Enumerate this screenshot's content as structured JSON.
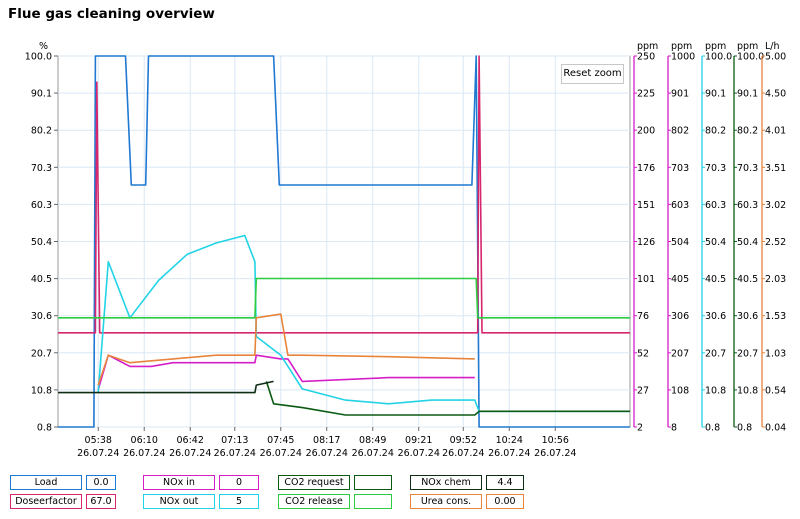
{
  "title": "Flue gas cleaning overview",
  "reset_zoom_label": "Reset zoom",
  "chart_data": {
    "type": "line",
    "title": "Flue gas cleaning overview",
    "x_ticks": [
      "05:38\n26.07.24",
      "06:10\n26.07.24",
      "06:42\n26.07.24",
      "07:13\n26.07.24",
      "07:45\n26.07.24",
      "08:17\n26.07.24",
      "08:49\n26.07.24",
      "09:21\n26.07.24",
      "09:52\n26.07.24",
      "10:24\n26.07.24",
      "10:56\n26.07.24"
    ],
    "xlim": [
      "05:10",
      "11:48"
    ],
    "axes": [
      {
        "id": "pct",
        "unit": "%",
        "side": "left",
        "ylim": [
          0.8,
          100.0
        ],
        "ticks": [
          "0.8",
          "10.8",
          "20.7",
          "30.6",
          "40.5",
          "50.4",
          "60.3",
          "70.3",
          "80.2",
          "90.1",
          "100.0"
        ],
        "color": "#000000"
      },
      {
        "id": "ppm250",
        "unit": "ppm",
        "side": "right",
        "ylim": [
          2,
          250
        ],
        "ticks": [
          "2",
          "27",
          "52",
          "76",
          "101",
          "126",
          "151",
          "176",
          "200",
          "225",
          "250"
        ],
        "color": "#d61ec8"
      },
      {
        "id": "ppm1000",
        "unit": "ppm",
        "side": "right",
        "ylim": [
          8,
          1000
        ],
        "ticks": [
          "8",
          "108",
          "207",
          "306",
          "405",
          "504",
          "603",
          "703",
          "802",
          "901",
          "1000"
        ],
        "color": "#d61ec8"
      },
      {
        "id": "ppm100",
        "unit": "ppm",
        "side": "right",
        "ylim": [
          0.8,
          100.0
        ],
        "ticks": [
          "0.8",
          "10.8",
          "20.7",
          "30.6",
          "40.5",
          "50.4",
          "60.3",
          "70.3",
          "80.2",
          "90.1",
          "100.0"
        ],
        "color": "#22d3e6"
      },
      {
        "id": "pct2",
        "unit": "ppm",
        "side": "right",
        "ylim": [
          0.8,
          100.0
        ],
        "ticks": [
          "0.8",
          "10.8",
          "20.7",
          "30.6",
          "40.5",
          "50.4",
          "60.3",
          "70.3",
          "80.2",
          "90.1",
          "100.0"
        ],
        "color": "#0b5a12"
      },
      {
        "id": "lh",
        "unit": "L/h",
        "side": "right",
        "ylim": [
          0.04,
          5.0
        ],
        "ticks": [
          "0.04",
          "0.54",
          "1.03",
          "1.53",
          "2.03",
          "2.52",
          "3.02",
          "3.51",
          "4.01",
          "4.50",
          "5.00"
        ],
        "color": "#e8843c"
      }
    ],
    "series": [
      {
        "name": "Load",
        "color": "#1f78d1",
        "axis": "pct",
        "points": [
          [
            "05:10",
            0.8
          ],
          [
            "05:35",
            0.8
          ],
          [
            "05:36",
            100
          ],
          [
            "05:57",
            100
          ],
          [
            "06:01",
            65.5
          ],
          [
            "06:11",
            65.5
          ],
          [
            "06:13",
            100
          ],
          [
            "07:40",
            100
          ],
          [
            "07:44",
            65.5
          ],
          [
            "09:58",
            65.5
          ],
          [
            "10:01",
            100
          ],
          [
            "10:03",
            0.8
          ],
          [
            "11:48",
            0.8
          ]
        ]
      },
      {
        "name": "Doseerfactor",
        "color": "#d6266e",
        "axis": "pct",
        "points": [
          [
            "05:10",
            26
          ],
          [
            "05:36",
            26
          ],
          [
            "05:37",
            93
          ],
          [
            "05:39",
            26
          ],
          [
            "10:02",
            26
          ],
          [
            "10:03",
            100
          ],
          [
            "10:05",
            26
          ],
          [
            "11:48",
            26
          ]
        ]
      },
      {
        "name": "NOx in",
        "color": "#d61ec8",
        "axis": "pct",
        "points": [
          [
            "05:38",
            10.8
          ],
          [
            "05:45",
            20
          ],
          [
            "06:00",
            17
          ],
          [
            "06:15",
            17
          ],
          [
            "06:30",
            18
          ],
          [
            "07:00",
            18
          ],
          [
            "07:27",
            18
          ],
          [
            "07:28",
            20
          ],
          [
            "07:45",
            19
          ],
          [
            "07:50",
            19
          ],
          [
            "08:00",
            13
          ],
          [
            "09:00",
            14
          ],
          [
            "10:00",
            14
          ]
        ]
      },
      {
        "name": "NOx out",
        "color": "#22d3e6",
        "axis": "ppm100",
        "points": [
          [
            "05:38",
            10
          ],
          [
            "05:45",
            45
          ],
          [
            "06:00",
            30
          ],
          [
            "06:20",
            40
          ],
          [
            "06:40",
            47
          ],
          [
            "07:00",
            50
          ],
          [
            "07:20",
            52
          ],
          [
            "07:27",
            45
          ],
          [
            "07:28",
            25
          ],
          [
            "07:45",
            20
          ],
          [
            "08:00",
            11
          ],
          [
            "08:30",
            8
          ],
          [
            "09:00",
            7
          ],
          [
            "09:30",
            8
          ],
          [
            "10:00",
            8
          ],
          [
            "10:03",
            5
          ],
          [
            "11:48",
            5
          ]
        ]
      },
      {
        "name": "CO2 request",
        "color": "#0b5a12",
        "axis": "pct2",
        "points": [
          [
            "07:35",
            13
          ],
          [
            "07:40",
            7
          ],
          [
            "08:00",
            6
          ],
          [
            "08:30",
            4
          ],
          [
            "09:00",
            4
          ],
          [
            "09:30",
            4
          ],
          [
            "10:00",
            4
          ],
          [
            "10:03",
            5
          ],
          [
            "11:48",
            5
          ]
        ]
      },
      {
        "name": "CO2 release",
        "color": "#2ecc40",
        "axis": "pct2",
        "points": [
          [
            "05:10",
            30
          ],
          [
            "07:27",
            30
          ],
          [
            "07:28",
            40.5
          ],
          [
            "10:01",
            40.5
          ],
          [
            "10:02",
            30
          ],
          [
            "11:48",
            30
          ]
        ]
      },
      {
        "name": "Urea cons.",
        "color": "#e8843c",
        "axis": "lh",
        "points": [
          [
            "05:38",
            0.6
          ],
          [
            "05:45",
            1.0
          ],
          [
            "06:00",
            0.9
          ],
          [
            "06:30",
            0.95
          ],
          [
            "07:00",
            1.0
          ],
          [
            "07:27",
            1.0
          ],
          [
            "07:28",
            1.5
          ],
          [
            "07:45",
            1.55
          ],
          [
            "07:50",
            1.0
          ],
          [
            "08:00",
            1.0
          ],
          [
            "09:00",
            0.98
          ],
          [
            "10:00",
            0.95
          ]
        ]
      },
      {
        "name": "NOx chem",
        "color": "#0e2d14",
        "axis": "pct2",
        "points": [
          [
            "05:10",
            10
          ],
          [
            "07:27",
            10
          ],
          [
            "07:28",
            12
          ],
          [
            "07:40",
            13
          ]
        ]
      }
    ],
    "legend_placement": "bottom",
    "grid": true
  },
  "legend": [
    {
      "name": "Load",
      "value": "0.0",
      "color": "#1f78d1"
    },
    {
      "name": "Doseerfactor",
      "value": "67.0",
      "color": "#d6266e"
    },
    {
      "name": "NOx in",
      "value": "0",
      "color": "#d61ec8"
    },
    {
      "name": "NOx out",
      "value": "5",
      "color": "#22d3e6"
    },
    {
      "name": "CO2 request",
      "value": "",
      "color": "#0b5a12"
    },
    {
      "name": "CO2 release",
      "value": "",
      "color": "#2ecc40"
    },
    {
      "name": "NOx chem",
      "value": "4.4",
      "color": "#0e2d14"
    },
    {
      "name": "Urea cons.",
      "value": "0.00",
      "color": "#e8843c"
    }
  ]
}
